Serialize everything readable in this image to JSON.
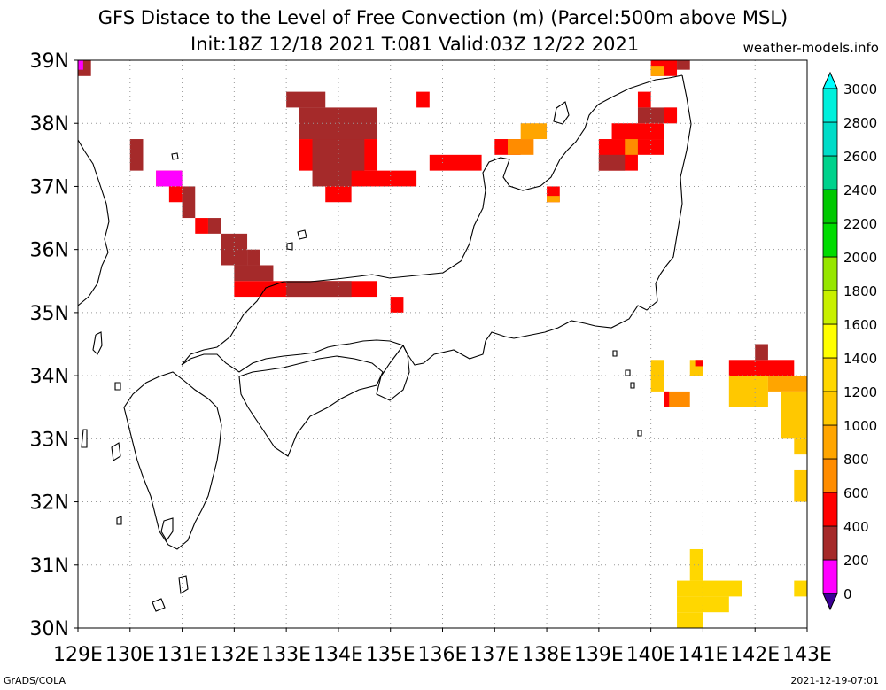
{
  "header": {
    "title": "GFS Distace to the Level of Free Convection (m) (Parcel:500m above MSL)",
    "subtitle": "Init:18Z 12/18 2021 T:081 Valid:03Z 12/22 2021",
    "site": "weather-models.info"
  },
  "footer": {
    "left": "GrADS/COLA",
    "right": "2021-12-19-07:01"
  },
  "map": {
    "lon_range": [
      129,
      143
    ],
    "lat_range": [
      30,
      39
    ],
    "lon_labels": [
      "129E",
      "130E",
      "131E",
      "132E",
      "133E",
      "134E",
      "135E",
      "136E",
      "137E",
      "138E",
      "139E",
      "140E",
      "141E",
      "142E",
      "143E"
    ],
    "lat_labels": [
      "30N",
      "31N",
      "32N",
      "33N",
      "34N",
      "35N",
      "36N",
      "37N",
      "38N",
      "39N"
    ]
  },
  "colorbar": {
    "labels": [
      "0",
      "200",
      "400",
      "600",
      "800",
      "1000",
      "1200",
      "1400",
      "1600",
      "1800",
      "2000",
      "2200",
      "2400",
      "2600",
      "2800",
      "3000"
    ],
    "colors": [
      "#3c0096",
      "#ff00ff",
      "#a52a2a",
      "#ff0000",
      "#ff8c00",
      "#ffa500",
      "#ffc800",
      "#ffd700",
      "#ffff00",
      "#c8f000",
      "#96e600",
      "#00dc00",
      "#00c800",
      "#00d28c",
      "#00dcc8",
      "#00f0dc",
      "#00ffff"
    ]
  },
  "fields": [
    {
      "lon": [
        129.0,
        129.25
      ],
      "lat": [
        38.75,
        39.0
      ],
      "color": "#a52a2a"
    },
    {
      "lon": [
        129.0,
        129.1
      ],
      "lat": [
        38.85,
        39.0
      ],
      "color": "#ff00ff"
    },
    {
      "lon": [
        130.0,
        130.25
      ],
      "lat": [
        37.25,
        37.75
      ],
      "color": "#a52a2a"
    },
    {
      "lon": [
        130.5,
        131.0
      ],
      "lat": [
        37.0,
        37.25
      ],
      "color": "#ff0000"
    },
    {
      "lon": [
        130.5,
        131.0
      ],
      "lat": [
        37.0,
        37.25
      ],
      "color": "#ff00ff"
    },
    {
      "lon": [
        130.75,
        131.0
      ],
      "lat": [
        36.75,
        37.0
      ],
      "color": "#ff0000"
    },
    {
      "lon": [
        131.0,
        131.25
      ],
      "lat": [
        36.5,
        37.0
      ],
      "color": "#a52a2a"
    },
    {
      "lon": [
        131.25,
        131.5
      ],
      "lat": [
        36.25,
        36.5
      ],
      "color": "#ff0000"
    },
    {
      "lon": [
        131.5,
        131.75
      ],
      "lat": [
        36.25,
        36.5
      ],
      "color": "#a52a2a"
    },
    {
      "lon": [
        131.75,
        132.25
      ],
      "lat": [
        35.75,
        36.25
      ],
      "color": "#a52a2a"
    },
    {
      "lon": [
        132.0,
        132.5
      ],
      "lat": [
        35.5,
        35.75
      ],
      "color": "#a52a2a"
    },
    {
      "lon": [
        132.25,
        132.5
      ],
      "lat": [
        35.75,
        36.0
      ],
      "color": "#a52a2a"
    },
    {
      "lon": [
        132.5,
        132.75
      ],
      "lat": [
        35.5,
        35.75
      ],
      "color": "#a52a2a"
    },
    {
      "lon": [
        132.0,
        134.75
      ],
      "lat": [
        35.25,
        35.5
      ],
      "color": "#ff0000"
    },
    {
      "lon": [
        133.0,
        134.25
      ],
      "lat": [
        35.25,
        35.5
      ],
      "color": "#a52a2a"
    },
    {
      "lon": [
        133.0,
        133.75
      ],
      "lat": [
        38.25,
        38.5
      ],
      "color": "#a52a2a"
    },
    {
      "lon": [
        133.25,
        134.75
      ],
      "lat": [
        37.75,
        38.25
      ],
      "color": "#a52a2a"
    },
    {
      "lon": [
        133.25,
        134.75
      ],
      "lat": [
        37.25,
        37.75
      ],
      "color": "#ff0000"
    },
    {
      "lon": [
        133.5,
        134.5
      ],
      "lat": [
        37.0,
        37.75
      ],
      "color": "#a52a2a"
    },
    {
      "lon": [
        134.25,
        135.5
      ],
      "lat": [
        37.0,
        37.25
      ],
      "color": "#ff0000"
    },
    {
      "lon": [
        133.75,
        134.25
      ],
      "lat": [
        36.75,
        37.0
      ],
      "color": "#ff0000"
    },
    {
      "lon": [
        135.0,
        135.25
      ],
      "lat": [
        35.0,
        35.25
      ],
      "color": "#ff0000"
    },
    {
      "lon": [
        135.5,
        135.75
      ],
      "lat": [
        38.25,
        38.5
      ],
      "color": "#ff0000"
    },
    {
      "lon": [
        135.75,
        136.75
      ],
      "lat": [
        37.25,
        37.5
      ],
      "color": "#ff0000"
    },
    {
      "lon": [
        137.0,
        137.5
      ],
      "lat": [
        37.5,
        37.75
      ],
      "color": "#ff0000"
    },
    {
      "lon": [
        137.25,
        137.75
      ],
      "lat": [
        37.5,
        37.75
      ],
      "color": "#ff8c00"
    },
    {
      "lon": [
        137.5,
        138.0
      ],
      "lat": [
        37.75,
        38.0
      ],
      "color": "#ffa500"
    },
    {
      "lon": [
        138.0,
        138.25
      ],
      "lat": [
        36.75,
        37.0
      ],
      "color": "#ff0000"
    },
    {
      "lon": [
        138.0,
        138.25
      ],
      "lat": [
        36.75,
        36.85
      ],
      "color": "#ffa500"
    },
    {
      "lon": [
        139.0,
        139.75
      ],
      "lat": [
        37.25,
        37.75
      ],
      "color": "#ff0000"
    },
    {
      "lon": [
        139.0,
        139.5
      ],
      "lat": [
        37.25,
        37.5
      ],
      "color": "#a52a2a"
    },
    {
      "lon": [
        139.25,
        140.25
      ],
      "lat": [
        37.75,
        38.0
      ],
      "color": "#ff0000"
    },
    {
      "lon": [
        139.5,
        139.75
      ],
      "lat": [
        37.5,
        37.75
      ],
      "color": "#ff8c00"
    },
    {
      "lon": [
        139.75,
        140.25
      ],
      "lat": [
        37.5,
        37.75
      ],
      "color": "#ff0000"
    },
    {
      "lon": [
        139.75,
        140.0
      ],
      "lat": [
        38.25,
        38.5
      ],
      "color": "#ff0000"
    },
    {
      "lon": [
        139.75,
        140.5
      ],
      "lat": [
        38.0,
        38.25
      ],
      "color": "#a52a2a"
    },
    {
      "lon": [
        140.25,
        140.5
      ],
      "lat": [
        38.0,
        38.25
      ],
      "color": "#ff0000"
    },
    {
      "lon": [
        140.0,
        140.5
      ],
      "lat": [
        38.75,
        39.0
      ],
      "color": "#ff0000"
    },
    {
      "lon": [
        140.0,
        140.25
      ],
      "lat": [
        38.75,
        38.9
      ],
      "color": "#ffa500"
    },
    {
      "lon": [
        140.5,
        140.75
      ],
      "lat": [
        38.85,
        39.0
      ],
      "color": "#a52a2a"
    },
    {
      "lon": [
        140.0,
        140.25
      ],
      "lat": [
        33.75,
        34.25
      ],
      "color": "#ffc800"
    },
    {
      "lon": [
        140.25,
        140.75
      ],
      "lat": [
        33.5,
        33.75
      ],
      "color": "#ff8c00"
    },
    {
      "lon": [
        140.25,
        140.35
      ],
      "lat": [
        33.5,
        33.75
      ],
      "color": "#ff0000"
    },
    {
      "lon": [
        140.75,
        141.0
      ],
      "lat": [
        34.0,
        34.25
      ],
      "color": "#ffc800"
    },
    {
      "lon": [
        140.85,
        141.0
      ],
      "lat": [
        34.15,
        34.25
      ],
      "color": "#ff0000"
    },
    {
      "lon": [
        141.5,
        142.75
      ],
      "lat": [
        34.0,
        34.25
      ],
      "color": "#ff0000"
    },
    {
      "lon": [
        142.0,
        142.25
      ],
      "lat": [
        34.25,
        34.5
      ],
      "color": "#a52a2a"
    },
    {
      "lon": [
        141.5,
        142.25
      ],
      "lat": [
        33.5,
        34.0
      ],
      "color": "#ffc800"
    },
    {
      "lon": [
        142.25,
        143.0
      ],
      "lat": [
        33.75,
        34.0
      ],
      "color": "#ffa500"
    },
    {
      "lon": [
        142.5,
        143.0
      ],
      "lat": [
        33.0,
        33.75
      ],
      "color": "#ffc800"
    },
    {
      "lon": [
        142.75,
        143.0
      ],
      "lat": [
        32.75,
        33.0
      ],
      "color": "#ffc800"
    },
    {
      "lon": [
        142.75,
        143.0
      ],
      "lat": [
        32.0,
        32.5
      ],
      "color": "#ffc800"
    },
    {
      "lon": [
        140.75,
        141.0
      ],
      "lat": [
        30.75,
        31.25
      ],
      "color": "#ffd700"
    },
    {
      "lon": [
        140.5,
        141.75
      ],
      "lat": [
        30.5,
        30.75
      ],
      "color": "#ffd700"
    },
    {
      "lon": [
        140.5,
        141.5
      ],
      "lat": [
        30.25,
        30.5
      ],
      "color": "#ffd700"
    },
    {
      "lon": [
        140.5,
        141.0
      ],
      "lat": [
        30.0,
        30.25
      ],
      "color": "#ffd700"
    },
    {
      "lon": [
        142.75,
        143.0
      ],
      "lat": [
        30.5,
        30.75
      ],
      "color": "#ffd700"
    }
  ]
}
